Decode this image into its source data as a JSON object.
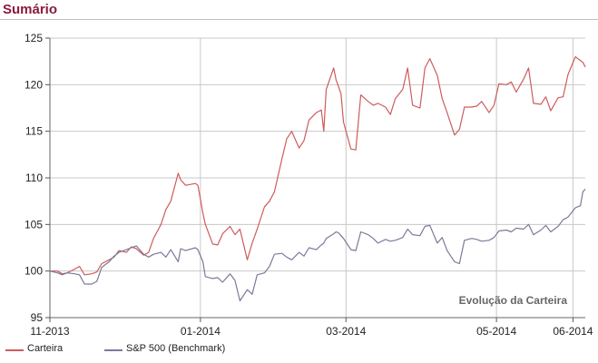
{
  "header": {
    "title": "Sumário"
  },
  "colors": {
    "header_title": "#8b1a3c",
    "carteira": "#cd5c5c",
    "benchmark": "#7a7a99",
    "grid": "#c8c8c8"
  },
  "chart_data": {
    "type": "line",
    "title": "",
    "annotation": "Evolução da Carteira",
    "xlabel": "",
    "ylabel": "",
    "x_range": [
      "2013-11-01",
      "2014-06-06"
    ],
    "ylim": [
      95,
      125
    ],
    "y_ticks": [
      95,
      100,
      105,
      110,
      115,
      120,
      125
    ],
    "x_ticks": [
      {
        "date": "2013-11-01",
        "label": "11-2013"
      },
      {
        "date": "2014-01-01",
        "label": "01-2014"
      },
      {
        "date": "2014-03-01",
        "label": "03-2014"
      },
      {
        "date": "2014-05-01",
        "label": "05-2014"
      },
      {
        "date": "2014-06-01",
        "label": "06-2014"
      }
    ],
    "grid": true,
    "legend_position": "bottom-left",
    "series": [
      {
        "name": "Carteira",
        "color": "#cd5c5c",
        "points": [
          [
            "2013-11-01",
            100.0
          ],
          [
            "2013-11-04",
            100.0
          ],
          [
            "2013-11-06",
            99.7
          ],
          [
            "2013-11-08",
            99.8
          ],
          [
            "2013-11-11",
            100.2
          ],
          [
            "2013-11-13",
            100.5
          ],
          [
            "2013-11-15",
            99.6
          ],
          [
            "2013-11-18",
            99.7
          ],
          [
            "2013-11-20",
            99.9
          ],
          [
            "2013-11-22",
            100.8
          ],
          [
            "2013-11-25",
            101.2
          ],
          [
            "2013-11-27",
            101.5
          ],
          [
            "2013-11-29",
            102.2
          ],
          [
            "2013-12-02",
            102.0
          ],
          [
            "2013-12-04",
            102.6
          ],
          [
            "2013-12-06",
            102.4
          ],
          [
            "2013-12-09",
            101.7
          ],
          [
            "2013-12-11",
            102.0
          ],
          [
            "2013-12-13",
            103.5
          ],
          [
            "2013-12-16",
            105.0
          ],
          [
            "2013-12-18",
            106.6
          ],
          [
            "2013-12-20",
            107.5
          ],
          [
            "2013-12-23",
            110.5
          ],
          [
            "2013-12-24",
            109.8
          ],
          [
            "2013-12-26",
            109.2
          ],
          [
            "2013-12-30",
            109.4
          ],
          [
            "2013-12-31",
            109.2
          ],
          [
            "2014-01-02",
            106.2
          ],
          [
            "2014-01-03",
            105.0
          ],
          [
            "2014-01-06",
            102.9
          ],
          [
            "2014-01-08",
            102.8
          ],
          [
            "2014-01-10",
            104.0
          ],
          [
            "2014-01-13",
            104.8
          ],
          [
            "2014-01-15",
            103.9
          ],
          [
            "2014-01-17",
            104.5
          ],
          [
            "2014-01-20",
            101.2
          ],
          [
            "2014-01-22",
            103.0
          ],
          [
            "2014-01-24",
            104.5
          ],
          [
            "2014-01-27",
            106.9
          ],
          [
            "2014-01-29",
            107.5
          ],
          [
            "2014-01-31",
            108.5
          ],
          [
            "2014-02-03",
            112.0
          ],
          [
            "2014-02-05",
            114.2
          ],
          [
            "2014-02-07",
            115.0
          ],
          [
            "2014-02-10",
            113.2
          ],
          [
            "2014-02-12",
            114.0
          ],
          [
            "2014-02-14",
            116.2
          ],
          [
            "2014-02-17",
            117.0
          ],
          [
            "2014-02-19",
            117.3
          ],
          [
            "2014-02-20",
            115.0
          ],
          [
            "2014-02-21",
            119.5
          ],
          [
            "2014-02-24",
            121.8
          ],
          [
            "2014-02-25",
            120.5
          ],
          [
            "2014-02-26",
            119.8
          ],
          [
            "2014-02-27",
            119.0
          ],
          [
            "2014-02-28",
            116.0
          ],
          [
            "2014-03-03",
            113.1
          ],
          [
            "2014-03-05",
            113.0
          ],
          [
            "2014-03-07",
            118.9
          ],
          [
            "2014-03-10",
            118.2
          ],
          [
            "2014-03-12",
            117.8
          ],
          [
            "2014-03-14",
            118.0
          ],
          [
            "2014-03-17",
            117.6
          ],
          [
            "2014-03-19",
            116.8
          ],
          [
            "2014-03-21",
            118.5
          ],
          [
            "2014-03-24",
            119.5
          ],
          [
            "2014-03-26",
            121.8
          ],
          [
            "2014-03-28",
            117.8
          ],
          [
            "2014-03-31",
            117.5
          ],
          [
            "2014-04-02",
            121.8
          ],
          [
            "2014-04-04",
            122.8
          ],
          [
            "2014-04-07",
            121.0
          ],
          [
            "2014-04-09",
            118.5
          ],
          [
            "2014-04-11",
            117.0
          ],
          [
            "2014-04-14",
            114.6
          ],
          [
            "2014-04-16",
            115.2
          ],
          [
            "2014-04-18",
            117.6
          ],
          [
            "2014-04-21",
            117.6
          ],
          [
            "2014-04-23",
            117.7
          ],
          [
            "2014-04-25",
            118.2
          ],
          [
            "2014-04-28",
            117.0
          ],
          [
            "2014-04-30",
            117.8
          ],
          [
            "2014-05-02",
            120.1
          ],
          [
            "2014-05-05",
            120.0
          ],
          [
            "2014-05-07",
            120.3
          ],
          [
            "2014-05-09",
            119.2
          ],
          [
            "2014-05-12",
            120.6
          ],
          [
            "2014-05-14",
            121.8
          ],
          [
            "2014-05-16",
            118.0
          ],
          [
            "2014-05-19",
            117.9
          ],
          [
            "2014-05-21",
            118.7
          ],
          [
            "2014-05-23",
            117.2
          ],
          [
            "2014-05-26",
            118.6
          ],
          [
            "2014-05-28",
            118.7
          ],
          [
            "2014-05-30",
            121.1
          ],
          [
            "2014-06-02",
            123.0
          ],
          [
            "2014-06-03",
            122.8
          ],
          [
            "2014-06-04",
            122.6
          ],
          [
            "2014-06-05",
            122.4
          ],
          [
            "2014-06-06",
            121.9
          ]
        ]
      },
      {
        "name": "S&P 500 (Benchmark)",
        "color": "#7a7a99",
        "points": [
          [
            "2013-11-01",
            100.0
          ],
          [
            "2013-11-04",
            99.8
          ],
          [
            "2013-11-06",
            99.6
          ],
          [
            "2013-11-08",
            99.8
          ],
          [
            "2013-11-11",
            99.7
          ],
          [
            "2013-11-13",
            99.6
          ],
          [
            "2013-11-15",
            98.6
          ],
          [
            "2013-11-18",
            98.6
          ],
          [
            "2013-11-20",
            98.9
          ],
          [
            "2013-11-22",
            100.4
          ],
          [
            "2013-11-25",
            101.0
          ],
          [
            "2013-11-27",
            101.6
          ],
          [
            "2013-11-29",
            102.0
          ],
          [
            "2013-12-02",
            102.3
          ],
          [
            "2013-12-04",
            102.5
          ],
          [
            "2013-12-06",
            102.7
          ],
          [
            "2013-12-09",
            101.8
          ],
          [
            "2013-12-11",
            101.5
          ],
          [
            "2013-12-13",
            101.8
          ],
          [
            "2013-12-16",
            102.0
          ],
          [
            "2013-12-18",
            101.5
          ],
          [
            "2013-12-20",
            102.3
          ],
          [
            "2013-12-23",
            101.0
          ],
          [
            "2013-12-24",
            102.4
          ],
          [
            "2013-12-26",
            102.2
          ],
          [
            "2013-12-30",
            102.5
          ],
          [
            "2013-12-31",
            102.3
          ],
          [
            "2014-01-02",
            101.0
          ],
          [
            "2014-01-03",
            99.4
          ],
          [
            "2014-01-06",
            99.2
          ],
          [
            "2014-01-08",
            99.3
          ],
          [
            "2014-01-10",
            98.8
          ],
          [
            "2014-01-13",
            99.7
          ],
          [
            "2014-01-15",
            99.0
          ],
          [
            "2014-01-17",
            96.8
          ],
          [
            "2014-01-20",
            98.0
          ],
          [
            "2014-01-22",
            97.5
          ],
          [
            "2014-01-24",
            99.6
          ],
          [
            "2014-01-27",
            99.8
          ],
          [
            "2014-01-29",
            100.5
          ],
          [
            "2014-01-31",
            101.8
          ],
          [
            "2014-02-03",
            101.9
          ],
          [
            "2014-02-05",
            101.5
          ],
          [
            "2014-02-07",
            101.2
          ],
          [
            "2014-02-10",
            102.0
          ],
          [
            "2014-02-12",
            101.6
          ],
          [
            "2014-02-14",
            102.5
          ],
          [
            "2014-02-17",
            102.3
          ],
          [
            "2014-02-19",
            102.8
          ],
          [
            "2014-02-20",
            103.0
          ],
          [
            "2014-02-21",
            103.5
          ],
          [
            "2014-02-24",
            104.0
          ],
          [
            "2014-02-25",
            104.2
          ],
          [
            "2014-02-26",
            104.1
          ],
          [
            "2014-02-27",
            103.8
          ],
          [
            "2014-02-28",
            103.5
          ],
          [
            "2014-03-03",
            102.3
          ],
          [
            "2014-03-05",
            102.2
          ],
          [
            "2014-03-07",
            104.2
          ],
          [
            "2014-03-10",
            103.9
          ],
          [
            "2014-03-12",
            103.5
          ],
          [
            "2014-03-14",
            103.0
          ],
          [
            "2014-03-17",
            103.4
          ],
          [
            "2014-03-19",
            103.2
          ],
          [
            "2014-03-21",
            103.3
          ],
          [
            "2014-03-24",
            103.6
          ],
          [
            "2014-03-26",
            104.5
          ],
          [
            "2014-03-28",
            103.9
          ],
          [
            "2014-03-31",
            103.8
          ],
          [
            "2014-04-02",
            104.8
          ],
          [
            "2014-04-04",
            104.9
          ],
          [
            "2014-04-07",
            103.0
          ],
          [
            "2014-04-09",
            103.6
          ],
          [
            "2014-04-11",
            102.2
          ],
          [
            "2014-04-14",
            101.0
          ],
          [
            "2014-04-16",
            100.8
          ],
          [
            "2014-04-18",
            103.3
          ],
          [
            "2014-04-21",
            103.5
          ],
          [
            "2014-04-23",
            103.4
          ],
          [
            "2014-04-25",
            103.2
          ],
          [
            "2014-04-28",
            103.3
          ],
          [
            "2014-04-30",
            103.6
          ],
          [
            "2014-05-02",
            104.3
          ],
          [
            "2014-05-05",
            104.4
          ],
          [
            "2014-05-07",
            104.2
          ],
          [
            "2014-05-09",
            104.6
          ],
          [
            "2014-05-12",
            104.5
          ],
          [
            "2014-05-14",
            105.0
          ],
          [
            "2014-05-16",
            103.9
          ],
          [
            "2014-05-19",
            104.4
          ],
          [
            "2014-05-21",
            104.9
          ],
          [
            "2014-05-23",
            104.2
          ],
          [
            "2014-05-26",
            104.8
          ],
          [
            "2014-05-28",
            105.5
          ],
          [
            "2014-05-30",
            105.8
          ],
          [
            "2014-06-02",
            106.8
          ],
          [
            "2014-06-03",
            106.9
          ],
          [
            "2014-06-04",
            107.0
          ],
          [
            "2014-06-05",
            108.5
          ],
          [
            "2014-06-06",
            108.8
          ]
        ]
      }
    ]
  }
}
